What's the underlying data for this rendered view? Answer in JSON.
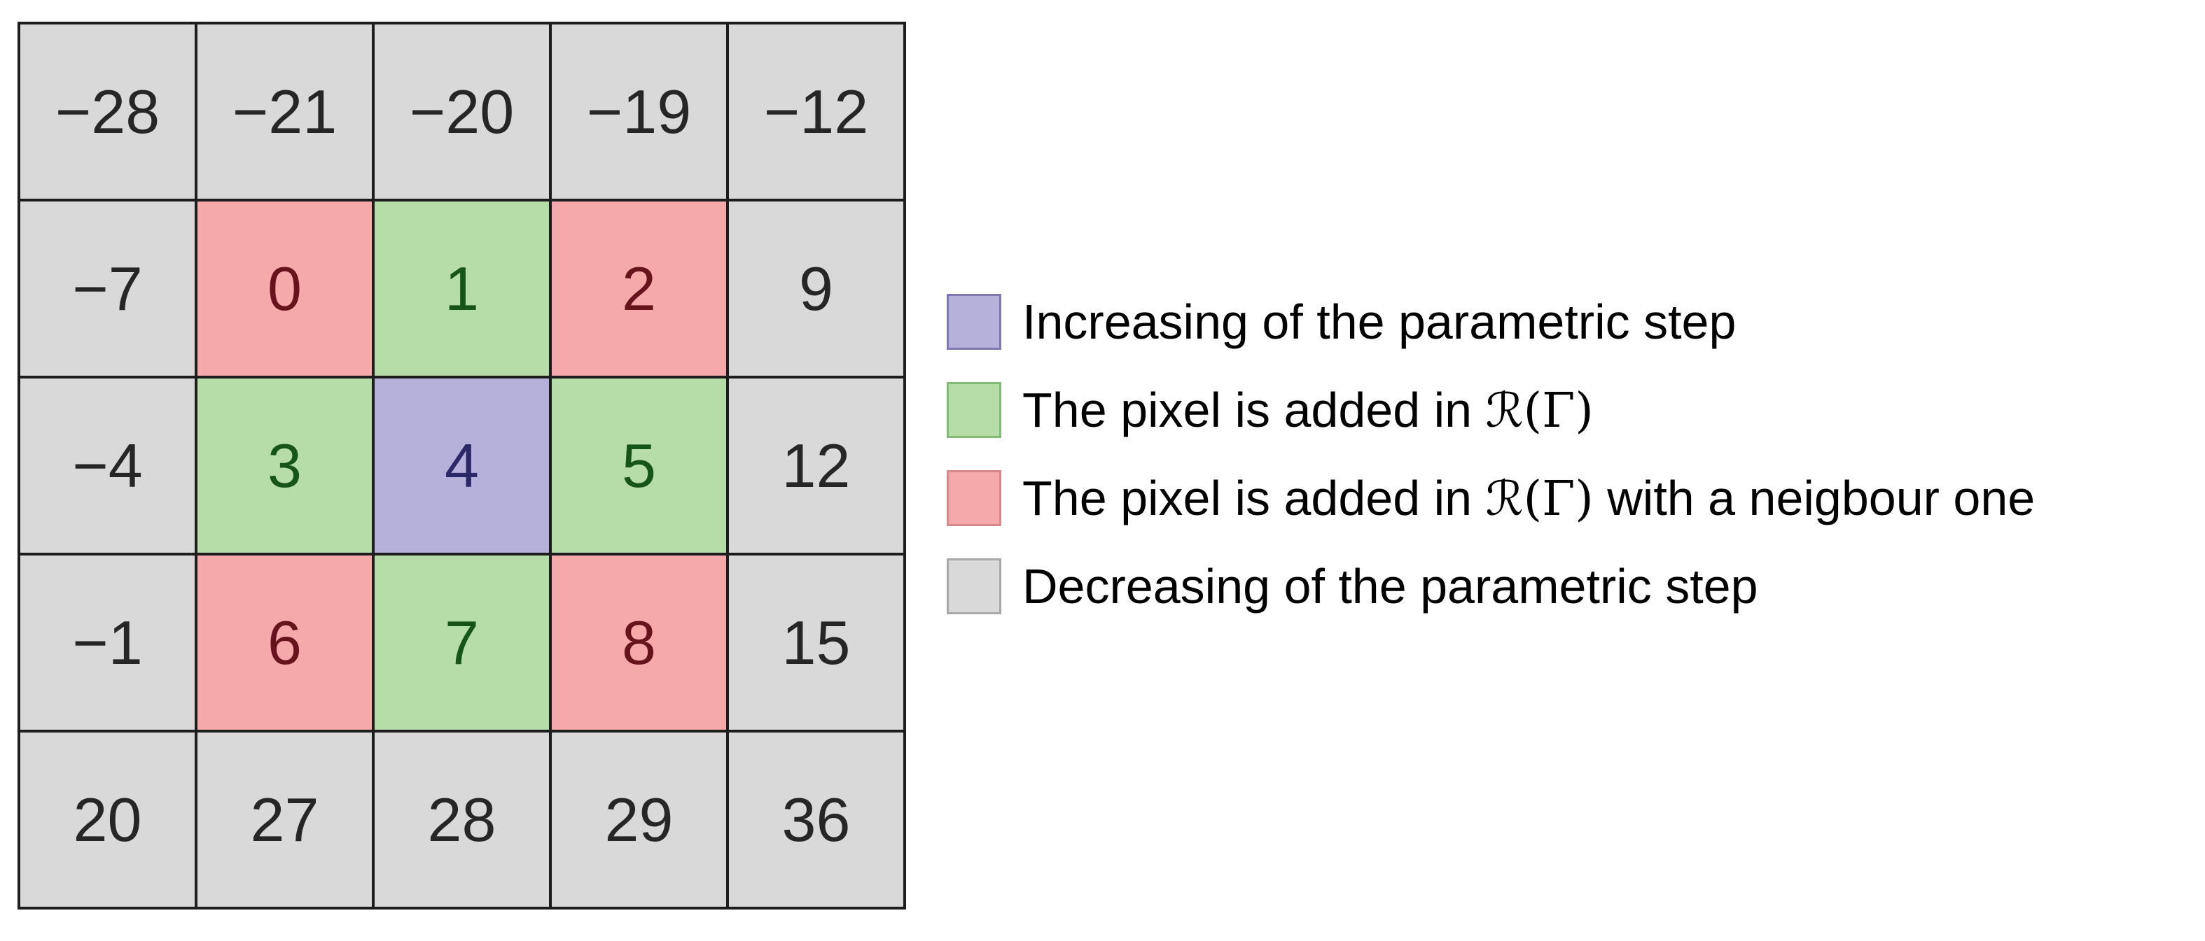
{
  "grid": {
    "rows": [
      [
        {
          "v": "−28",
          "t": "decrease"
        },
        {
          "v": "−21",
          "t": "decrease"
        },
        {
          "v": "−20",
          "t": "decrease"
        },
        {
          "v": "−19",
          "t": "decrease"
        },
        {
          "v": "−12",
          "t": "decrease"
        }
      ],
      [
        {
          "v": "−7",
          "t": "decrease"
        },
        {
          "v": "0",
          "t": "neighbour"
        },
        {
          "v": "1",
          "t": "added"
        },
        {
          "v": "2",
          "t": "neighbour"
        },
        {
          "v": "9",
          "t": "decrease"
        }
      ],
      [
        {
          "v": "−4",
          "t": "decrease"
        },
        {
          "v": "3",
          "t": "added"
        },
        {
          "v": "4",
          "t": "increase"
        },
        {
          "v": "5",
          "t": "added"
        },
        {
          "v": "12",
          "t": "decrease"
        }
      ],
      [
        {
          "v": "−1",
          "t": "decrease"
        },
        {
          "v": "6",
          "t": "neighbour"
        },
        {
          "v": "7",
          "t": "added"
        },
        {
          "v": "8",
          "t": "neighbour"
        },
        {
          "v": "15",
          "t": "decrease"
        }
      ],
      [
        {
          "v": "20",
          "t": "decrease"
        },
        {
          "v": "27",
          "t": "decrease"
        },
        {
          "v": "28",
          "t": "decrease"
        },
        {
          "v": "29",
          "t": "decrease"
        },
        {
          "v": "36",
          "t": "decrease"
        }
      ]
    ]
  },
  "legend": {
    "items": [
      {
        "type": "increase",
        "text_before": "Increasing of the parametric step",
        "math": "",
        "text_after": ""
      },
      {
        "type": "added",
        "text_before": "The pixel is added in ",
        "math": "ℛ(Γ)",
        "text_after": ""
      },
      {
        "type": "neighbour",
        "text_before": "The pixel is added in ",
        "math": "ℛ(Γ)",
        "text_after": " with a neigbour one"
      },
      {
        "type": "decrease",
        "text_before": "Decreasing of the parametric step",
        "math": "",
        "text_after": ""
      }
    ]
  },
  "colors": {
    "increase_fill": "#b5b1da",
    "increase_border": "#7d78ae",
    "increase_text": "#2a2867",
    "added_fill": "#b6dca7",
    "added_border": "#85b977",
    "added_text": "#175419",
    "neighbour_fill": "#f6a9ab",
    "neighbour_border": "#d4898c",
    "neighbour_text": "#66131e",
    "decrease_fill": "#d9d9d9",
    "decrease_border": "#a8a8a8",
    "decrease_text": "#262626",
    "grid_line": "#1d1d1d",
    "legend_text": "#000000",
    "background": "#ffffff"
  }
}
